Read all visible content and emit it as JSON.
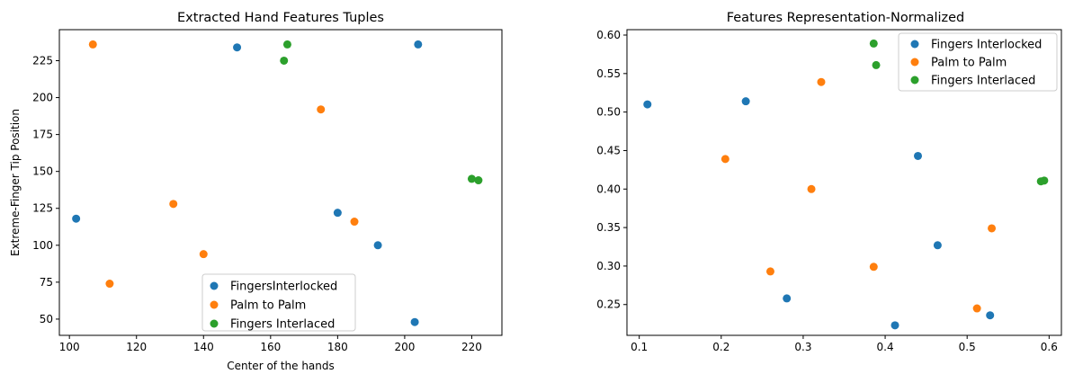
{
  "chart_data": [
    {
      "type": "scatter",
      "title": "Extracted Hand Features Tuples",
      "xlabel": "Center of the hands",
      "ylabel": "Extreme-Finger Tip Position",
      "xlim": [
        97,
        229
      ],
      "ylim": [
        39,
        246
      ],
      "xticks": [
        100,
        120,
        140,
        160,
        180,
        200,
        220
      ],
      "yticks": [
        50,
        75,
        100,
        125,
        150,
        175,
        200,
        225
      ],
      "grid": false,
      "legend_position": "lower-center",
      "series": [
        {
          "name": "FingersInterlocked",
          "color": "#1f77b4",
          "points": [
            [
              102,
              118
            ],
            [
              150,
              234
            ],
            [
              180,
              122
            ],
            [
              192,
              100
            ],
            [
              204,
              236
            ],
            [
              203,
              48
            ]
          ]
        },
        {
          "name": "Palm to Palm",
          "color": "#ff7f0e",
          "points": [
            [
              107,
              236
            ],
            [
              112,
              74
            ],
            [
              131,
              128
            ],
            [
              140,
              94
            ],
            [
              175,
              192
            ],
            [
              185,
              116
            ]
          ]
        },
        {
          "name": "Fingers Interlaced",
          "color": "#2ca02c",
          "points": [
            [
              164,
              225
            ],
            [
              165,
              236
            ],
            [
              220,
              145
            ],
            [
              222,
              144
            ]
          ]
        }
      ]
    },
    {
      "type": "scatter",
      "title": "Features Representation-Normalized",
      "xlabel": "",
      "ylabel": "",
      "xlim": [
        0.085,
        0.615
      ],
      "ylim": [
        0.21,
        0.607
      ],
      "xticks": [
        0.1,
        0.2,
        0.3,
        0.4,
        0.5,
        0.6
      ],
      "yticks": [
        0.25,
        0.3,
        0.35,
        0.4,
        0.45,
        0.5,
        0.55,
        0.6
      ],
      "tick_labels_x": [
        "0.1",
        "0.2",
        "0.3",
        "0.4",
        "0.5",
        "0.6"
      ],
      "tick_labels_y": [
        "0.25",
        "0.30",
        "0.35",
        "0.40",
        "0.45",
        "0.50",
        "0.55",
        "0.60"
      ],
      "grid": false,
      "legend_position": "top-right",
      "series": [
        {
          "name": "Fingers Interlocked",
          "color": "#1f77b4",
          "points": [
            [
              0.11,
              0.51
            ],
            [
              0.23,
              0.514
            ],
            [
              0.28,
              0.258
            ],
            [
              0.412,
              0.223
            ],
            [
              0.44,
              0.443
            ],
            [
              0.464,
              0.327
            ],
            [
              0.528,
              0.236
            ]
          ]
        },
        {
          "name": "Palm to Palm",
          "color": "#ff7f0e",
          "points": [
            [
              0.205,
              0.439
            ],
            [
              0.26,
              0.293
            ],
            [
              0.31,
              0.4
            ],
            [
              0.322,
              0.539
            ],
            [
              0.386,
              0.299
            ],
            [
              0.512,
              0.245
            ],
            [
              0.53,
              0.349
            ]
          ]
        },
        {
          "name": "Fingers Interlaced",
          "color": "#2ca02c",
          "points": [
            [
              0.386,
              0.589
            ],
            [
              0.389,
              0.561
            ],
            [
              0.59,
              0.41
            ],
            [
              0.594,
              0.411
            ]
          ]
        }
      ]
    }
  ]
}
